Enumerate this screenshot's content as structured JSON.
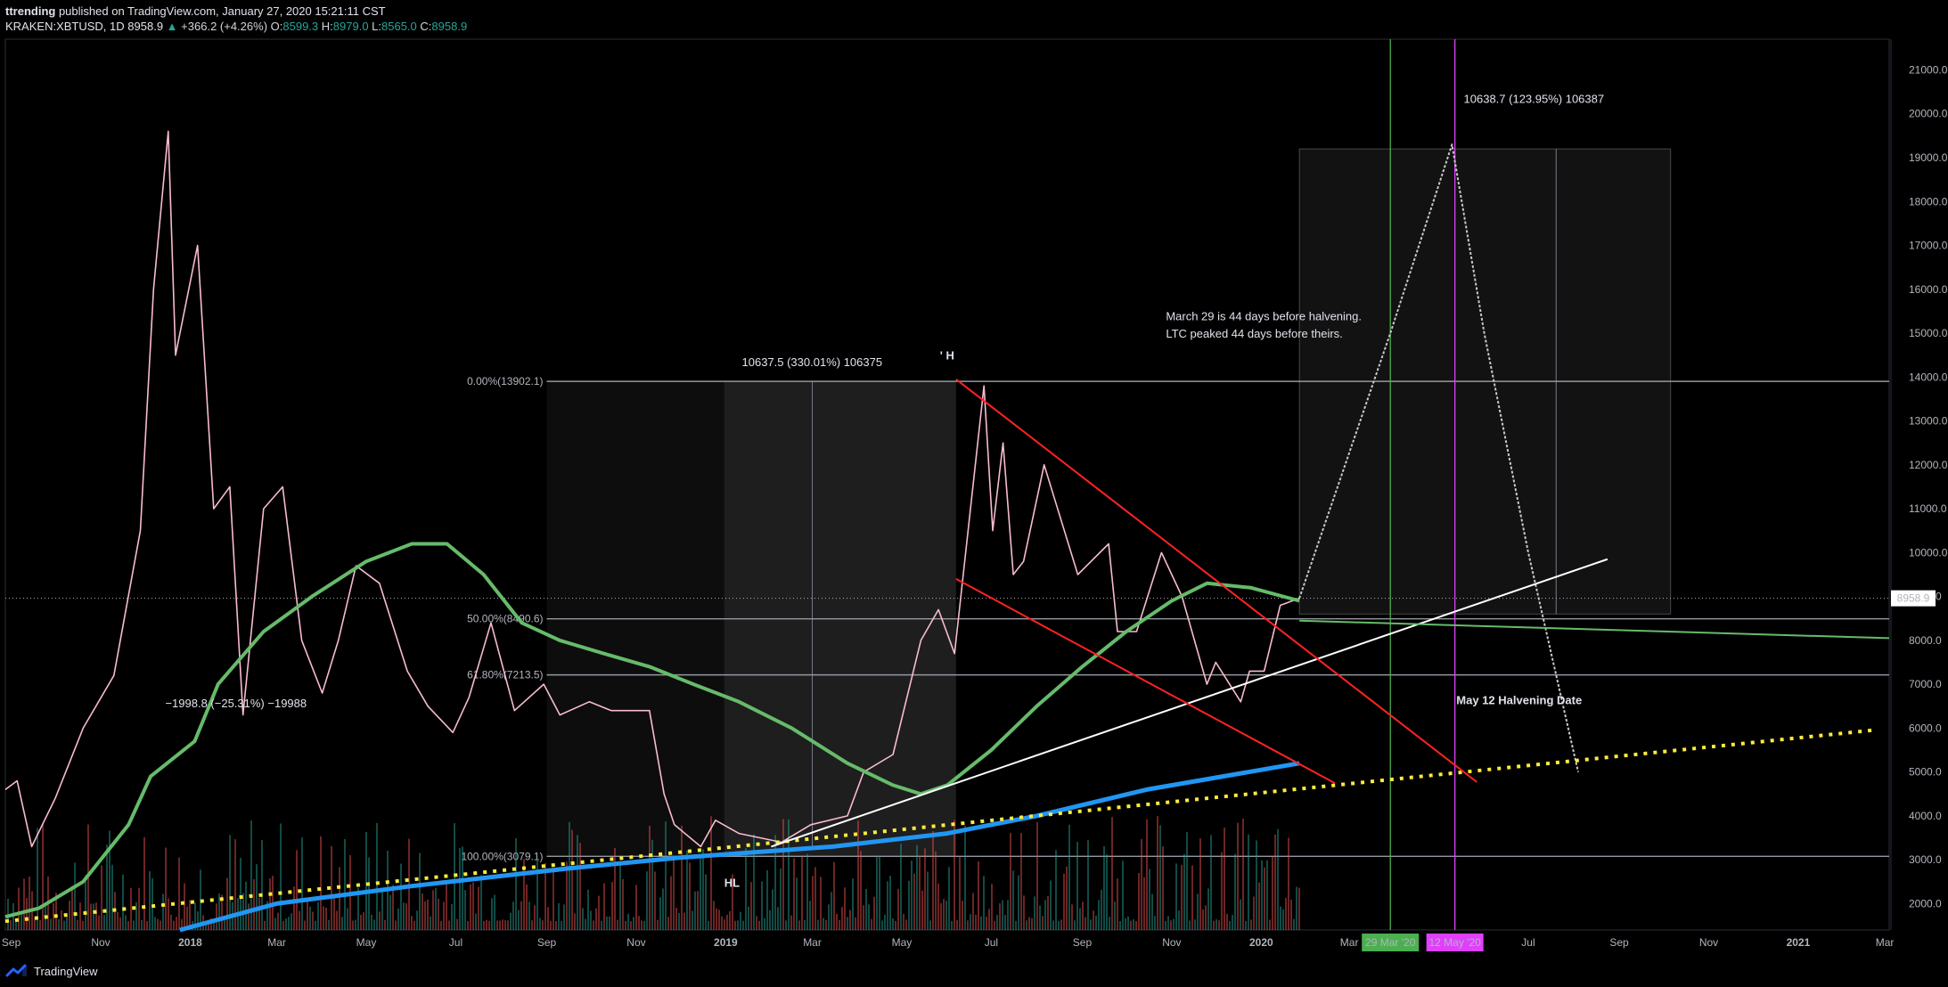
{
  "header": {
    "author": "ttrending",
    "published": "published on TradingView.com, January 27, 2020 15:21:11 CST",
    "symbol": "KRAKEN:XBTUSD, 1D",
    "last": "8958.9",
    "arrow": "▲",
    "change": "+366.2 (+4.26%)",
    "o_label": "O:",
    "o_value": "8599.3",
    "h_label": "H:",
    "h_value": "8979.0",
    "l_label": "L:",
    "l_value": "8565.0",
    "c_label": "C:",
    "c_value": "8958.9"
  },
  "footer": {
    "brand": "TradingView",
    "logo_icon": "tradingview-logo-icon"
  },
  "chart_data": {
    "type": "line",
    "symbol": "KRAKEN:XBTUSD",
    "interval": "1D",
    "y_ticks": [
      "21000.0",
      "20000.0",
      "19000.0",
      "18000.0",
      "17000.0",
      "16000.0",
      "15000.0",
      "14000.0",
      "13000.0",
      "12000.0",
      "11000.0",
      "10000.0",
      "9000.0",
      "8000.0",
      "7000.0",
      "6000.0",
      "5000.0",
      "4000.0",
      "3000.0",
      "2000.0"
    ],
    "ylim": [
      1400,
      21700
    ],
    "x_ticks": [
      "Sep",
      "Nov",
      "2018",
      "Mar",
      "May",
      "Jul",
      "Sep",
      "Nov",
      "2019",
      "Mar",
      "May",
      "Jul",
      "Sep",
      "Nov",
      "2020",
      "Mar",
      "Jul",
      "Sep",
      "Nov",
      "2021",
      "Mar"
    ],
    "x_tick_dates": [
      "2017-09-01",
      "2017-11-01",
      "2018-01-01",
      "2018-03-01",
      "2018-05-01",
      "2018-07-01",
      "2018-09-01",
      "2018-11-01",
      "2019-01-01",
      "2019-03-01",
      "2019-05-01",
      "2019-07-01",
      "2019-09-01",
      "2019-11-01",
      "2020-01-01",
      "2020-03-01",
      "2020-07-01",
      "2020-09-01",
      "2020-11-01",
      "2021-01-01",
      "2021-03-01"
    ],
    "xlim": [
      "2017-08-28",
      "2021-03-04"
    ],
    "last_price_label": "8958.9",
    "date_markers": [
      {
        "label": "29 Mar '20",
        "date": "2020-03-29",
        "color": "#4caf50"
      },
      {
        "label": "12 May '20",
        "date": "2020-05-12",
        "color": "#e040fb"
      }
    ],
    "series": [
      {
        "name": "Price",
        "color": "#f8bbd0",
        "points": [
          [
            "2017-08-28",
            4600
          ],
          [
            "2017-09-05",
            4800
          ],
          [
            "2017-09-15",
            3300
          ],
          [
            "2017-10-01",
            4400
          ],
          [
            "2017-10-20",
            6000
          ],
          [
            "2017-11-10",
            7200
          ],
          [
            "2017-11-28",
            10500
          ],
          [
            "2017-12-07",
            16000
          ],
          [
            "2017-12-17",
            19600
          ],
          [
            "2017-12-22",
            14500
          ],
          [
            "2018-01-06",
            17000
          ],
          [
            "2018-01-17",
            11000
          ],
          [
            "2018-01-28",
            11500
          ],
          [
            "2018-02-06",
            6300
          ],
          [
            "2018-02-20",
            11000
          ],
          [
            "2018-03-05",
            11500
          ],
          [
            "2018-03-18",
            8000
          ],
          [
            "2018-04-01",
            6800
          ],
          [
            "2018-04-12",
            8000
          ],
          [
            "2018-04-24",
            9700
          ],
          [
            "2018-05-10",
            9300
          ],
          [
            "2018-05-29",
            7300
          ],
          [
            "2018-06-12",
            6500
          ],
          [
            "2018-06-29",
            5900
          ],
          [
            "2018-07-10",
            6700
          ],
          [
            "2018-07-25",
            8400
          ],
          [
            "2018-08-10",
            6400
          ],
          [
            "2018-08-30",
            7000
          ],
          [
            "2018-09-10",
            6300
          ],
          [
            "2018-09-30",
            6600
          ],
          [
            "2018-10-15",
            6400
          ],
          [
            "2018-11-10",
            6400
          ],
          [
            "2018-11-20",
            4500
          ],
          [
            "2018-11-27",
            3800
          ],
          [
            "2018-12-15",
            3300
          ],
          [
            "2018-12-25",
            3900
          ],
          [
            "2019-01-10",
            3600
          ],
          [
            "2019-02-08",
            3400
          ],
          [
            "2019-02-28",
            3800
          ],
          [
            "2019-03-25",
            4000
          ],
          [
            "2019-04-05",
            5000
          ],
          [
            "2019-04-25",
            5400
          ],
          [
            "2019-05-14",
            8000
          ],
          [
            "2019-05-26",
            8700
          ],
          [
            "2019-06-06",
            7700
          ],
          [
            "2019-06-26",
            13800
          ],
          [
            "2019-07-02",
            10500
          ],
          [
            "2019-07-09",
            12500
          ],
          [
            "2019-07-16",
            9500
          ],
          [
            "2019-07-23",
            9800
          ],
          [
            "2019-08-06",
            12000
          ],
          [
            "2019-08-29",
            9500
          ],
          [
            "2019-09-19",
            10200
          ],
          [
            "2019-09-25",
            8200
          ],
          [
            "2019-10-08",
            8200
          ],
          [
            "2019-10-25",
            10000
          ],
          [
            "2019-11-08",
            9000
          ],
          [
            "2019-11-25",
            7000
          ],
          [
            "2019-12-01",
            7500
          ],
          [
            "2019-12-18",
            6600
          ],
          [
            "2019-12-24",
            7300
          ],
          [
            "2020-01-03",
            7300
          ],
          [
            "2020-01-14",
            8800
          ],
          [
            "2020-01-27",
            8958.9
          ]
        ]
      },
      {
        "name": "Projection",
        "color": "#c8c8c8",
        "points": [
          [
            "2020-01-27",
            8958.9
          ],
          [
            "2020-03-29",
            15000
          ],
          [
            "2020-05-10",
            19300
          ],
          [
            "2020-06-01",
            15000
          ],
          [
            "2020-07-01",
            10000
          ],
          [
            "2020-08-04",
            5000
          ]
        ]
      },
      {
        "name": "Green MA",
        "color": "#66bb6a",
        "points": [
          [
            "2017-08-28",
            1700
          ],
          [
            "2017-09-20",
            1900
          ],
          [
            "2017-10-20",
            2500
          ],
          [
            "2017-11-20",
            3800
          ],
          [
            "2017-12-05",
            4900
          ],
          [
            "2018-01-04",
            5700
          ],
          [
            "2018-01-20",
            7000
          ],
          [
            "2018-02-20",
            8200
          ],
          [
            "2018-03-25",
            9000
          ],
          [
            "2018-05-01",
            9800
          ],
          [
            "2018-06-01",
            10200
          ],
          [
            "2018-06-25",
            10200
          ],
          [
            "2018-07-20",
            9500
          ],
          [
            "2018-08-15",
            8400
          ],
          [
            "2018-09-10",
            8000
          ],
          [
            "2018-10-10",
            7700
          ],
          [
            "2018-11-10",
            7400
          ],
          [
            "2018-12-10",
            7000
          ],
          [
            "2019-01-10",
            6600
          ],
          [
            "2019-02-15",
            6000
          ],
          [
            "2019-03-25",
            5200
          ],
          [
            "2019-04-25",
            4700
          ],
          [
            "2019-05-14",
            4500
          ],
          [
            "2019-06-01",
            4700
          ],
          [
            "2019-07-01",
            5500
          ],
          [
            "2019-08-01",
            6500
          ],
          [
            "2019-09-01",
            7400
          ],
          [
            "2019-10-01",
            8200
          ],
          [
            "2019-11-01",
            8900
          ],
          [
            "2019-11-25",
            9300
          ],
          [
            "2019-12-25",
            9200
          ],
          [
            "2020-01-27",
            8900
          ]
        ]
      },
      {
        "name": "Blue MA",
        "color": "#2196f3",
        "points": [
          [
            "2017-12-25",
            1400
          ],
          [
            "2018-03-01",
            2000
          ],
          [
            "2018-06-01",
            2400
          ],
          [
            "2018-09-15",
            2800
          ],
          [
            "2018-12-01",
            3050
          ],
          [
            "2019-03-15",
            3300
          ],
          [
            "2019-06-01",
            3600
          ],
          [
            "2019-08-01",
            4000
          ],
          [
            "2019-10-15",
            4600
          ],
          [
            "2020-01-27",
            5200
          ]
        ]
      },
      {
        "name": "Yellow trend",
        "color": "#ffeb3b",
        "points": [
          [
            "2017-08-28",
            1600
          ],
          [
            "2021-02-20",
            5950
          ]
        ]
      }
    ],
    "trendlines": [
      {
        "color": "#ffffff",
        "from": [
          "2019-02-01",
          3300
        ],
        "to": [
          "2020-08-24",
          9850
        ]
      },
      {
        "color": "#ff2222",
        "from": [
          "2019-06-07",
          13950
        ],
        "to": [
          "2020-05-27",
          4770
        ]
      },
      {
        "color": "#ff2222",
        "from": [
          "2019-06-07",
          9400
        ],
        "to": [
          "2020-02-20",
          4750
        ]
      },
      {
        "color": "#66bb6a",
        "from": [
          "2020-01-27",
          8450
        ],
        "to": [
          "2021-03-04",
          8050
        ]
      }
    ],
    "horizontal_levels": [
      {
        "value": 13902.1,
        "label": "0.00%(13902.1)"
      },
      {
        "value": 8490.6,
        "label": "50.00%(8490.6)"
      },
      {
        "value": 7213.5,
        "label": "61.80%(7213.5)"
      },
      {
        "value": 3079.1,
        "label": "100.00%(3079.1)"
      }
    ],
    "annotations": {
      "measure1": "10637.5 (330.01%) 106375",
      "measure2": "10638.7 (123.95%) 106387",
      "measure3": "−1998.8 (−25.31%) −19988",
      "note_line1": "March 29 is 44 days before halvening.",
      "note_line2": "LTC peaked 44 days before theirs.",
      "halving": "May 12 Halvening Date",
      "lh": "' H",
      "hl": "HL"
    },
    "colors": {
      "up": "#26a69a",
      "down": "#ef5350",
      "candle": "#f8bbd0",
      "grid": "#2a2e39"
    }
  }
}
